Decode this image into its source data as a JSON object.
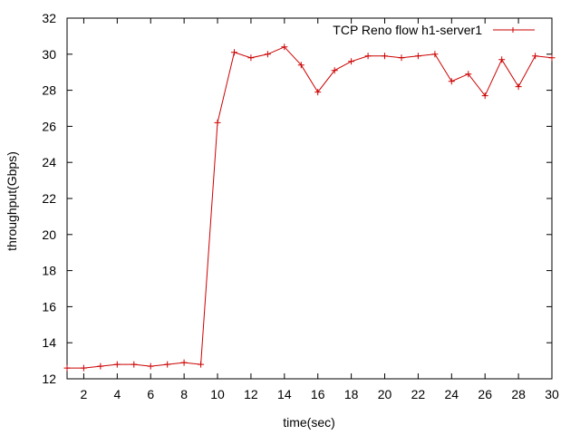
{
  "chart_data": {
    "type": "line",
    "title": "",
    "xlabel": "time(sec)",
    "ylabel": "throughput(Gbps)",
    "xlim": [
      1,
      30
    ],
    "ylim": [
      12,
      32
    ],
    "xticks": [
      2,
      4,
      6,
      8,
      10,
      12,
      14,
      16,
      18,
      20,
      22,
      24,
      26,
      28,
      30
    ],
    "yticks": [
      12,
      14,
      16,
      18,
      20,
      22,
      24,
      26,
      28,
      30,
      32
    ],
    "grid": false,
    "legend_position": "top-right",
    "series": [
      {
        "name": "TCP Reno flow h1-server1",
        "color": "#cc0000",
        "marker": "plus",
        "x": [
          1,
          2,
          3,
          4,
          5,
          6,
          7,
          8,
          9,
          10,
          11,
          12,
          13,
          14,
          15,
          16,
          17,
          18,
          19,
          20,
          21,
          22,
          23,
          24,
          25,
          26,
          27,
          28,
          29,
          30
        ],
        "y": [
          12.6,
          12.6,
          12.7,
          12.8,
          12.8,
          12.7,
          12.8,
          12.9,
          12.8,
          26.2,
          30.1,
          29.8,
          30.0,
          30.4,
          29.4,
          27.9,
          29.1,
          29.6,
          29.9,
          29.9,
          29.8,
          29.9,
          30.0,
          28.5,
          28.9,
          27.7,
          29.7,
          28.2,
          29.9,
          29.8
        ]
      }
    ]
  }
}
